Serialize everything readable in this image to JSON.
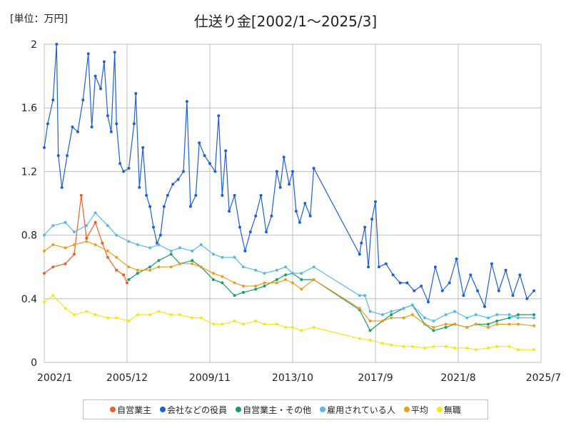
{
  "chart_data": {
    "type": "line",
    "title": "仕送り金[2002/1～2025/3]",
    "unit_label": "[単位：万円]",
    "x_tick_labels": [
      "2002/1",
      "2005/12",
      "2009/11",
      "2013/10",
      "2017/9",
      "2021/8",
      "2025/7"
    ],
    "x_range": [
      "2002-01",
      "2025-07"
    ],
    "y_tick_labels": [
      "0",
      "0.4",
      "0.8",
      "1.2",
      "1.6",
      "2"
    ],
    "ylim": [
      0,
      2
    ],
    "grid": true,
    "legend_position": "bottom",
    "series": [
      {
        "name": "自営業主",
        "color": "#e8612c",
        "points": [
          [
            "2002-01",
            0.56
          ],
          [
            "2002-06",
            0.6
          ],
          [
            "2003-01",
            0.62
          ],
          [
            "2003-06",
            0.68
          ],
          [
            "2003-10",
            1.05
          ],
          [
            "2004-01",
            0.78
          ],
          [
            "2004-06",
            0.88
          ],
          [
            "2004-10",
            0.75
          ],
          [
            "2005-01",
            0.66
          ],
          [
            "2005-06",
            0.58
          ],
          [
            "2005-10",
            0.55
          ],
          [
            "2005-12",
            0.5
          ]
        ]
      },
      {
        "name": "会社などの役員",
        "color": "#1f5fd1",
        "points": [
          [
            "2002-01",
            1.35
          ],
          [
            "2002-03",
            1.5
          ],
          [
            "2002-06",
            1.65
          ],
          [
            "2002-08",
            2.0
          ],
          [
            "2002-09",
            1.3
          ],
          [
            "2002-11",
            1.1
          ],
          [
            "2003-02",
            1.3
          ],
          [
            "2003-05",
            1.48
          ],
          [
            "2003-08",
            1.45
          ],
          [
            "2003-11",
            1.65
          ],
          [
            "2004-02",
            1.94
          ],
          [
            "2004-04",
            1.48
          ],
          [
            "2004-06",
            1.8
          ],
          [
            "2004-09",
            1.72
          ],
          [
            "2004-11",
            1.89
          ],
          [
            "2005-01",
            1.55
          ],
          [
            "2005-03",
            1.45
          ],
          [
            "2005-05",
            1.95
          ],
          [
            "2005-06",
            1.5
          ],
          [
            "2005-08",
            1.25
          ],
          [
            "2005-10",
            1.2
          ],
          [
            "2006-01",
            1.22
          ],
          [
            "2006-04",
            1.5
          ],
          [
            "2006-05",
            1.69
          ],
          [
            "2006-07",
            1.1
          ],
          [
            "2006-09",
            1.35
          ],
          [
            "2006-11",
            1.05
          ],
          [
            "2007-01",
            0.98
          ],
          [
            "2007-03",
            0.85
          ],
          [
            "2007-05",
            0.75
          ],
          [
            "2007-07",
            0.8
          ],
          [
            "2007-09",
            0.98
          ],
          [
            "2007-11",
            1.05
          ],
          [
            "2008-02",
            1.12
          ],
          [
            "2008-05",
            1.15
          ],
          [
            "2008-08",
            1.2
          ],
          [
            "2008-10",
            1.64
          ],
          [
            "2008-12",
            0.98
          ],
          [
            "2009-03",
            1.05
          ],
          [
            "2009-05",
            1.38
          ],
          [
            "2009-08",
            1.3
          ],
          [
            "2009-11",
            1.25
          ],
          [
            "2010-02",
            1.2
          ],
          [
            "2010-04",
            1.55
          ],
          [
            "2010-06",
            1.05
          ],
          [
            "2010-08",
            1.33
          ],
          [
            "2010-10",
            0.95
          ],
          [
            "2011-01",
            1.05
          ],
          [
            "2011-04",
            0.85
          ],
          [
            "2011-07",
            0.7
          ],
          [
            "2011-10",
            0.82
          ],
          [
            "2012-01",
            0.92
          ],
          [
            "2012-04",
            1.05
          ],
          [
            "2012-07",
            0.82
          ],
          [
            "2012-10",
            0.92
          ],
          [
            "2013-01",
            1.2
          ],
          [
            "2013-03",
            1.1
          ],
          [
            "2013-05",
            1.29
          ],
          [
            "2013-08",
            1.12
          ],
          [
            "2013-10",
            1.2
          ],
          [
            "2013-12",
            0.95
          ],
          [
            "2014-02",
            0.88
          ],
          [
            "2014-05",
            1.0
          ],
          [
            "2014-08",
            0.92
          ],
          [
            "2014-10",
            1.22
          ],
          [
            "2016-12",
            0.68
          ],
          [
            "2017-01",
            0.75
          ],
          [
            "2017-03",
            0.85
          ],
          [
            "2017-05",
            0.6
          ],
          [
            "2017-07",
            0.9
          ],
          [
            "2017-09",
            1.01
          ],
          [
            "2017-11",
            0.6
          ],
          [
            "2018-03",
            0.62
          ],
          [
            "2018-07",
            0.55
          ],
          [
            "2018-11",
            0.5
          ],
          [
            "2019-03",
            0.5
          ],
          [
            "2019-07",
            0.45
          ],
          [
            "2019-11",
            0.48
          ],
          [
            "2020-03",
            0.38
          ],
          [
            "2020-07",
            0.6
          ],
          [
            "2020-11",
            0.45
          ],
          [
            "2021-03",
            0.5
          ],
          [
            "2021-07",
            0.65
          ],
          [
            "2021-11",
            0.42
          ],
          [
            "2022-03",
            0.55
          ],
          [
            "2022-07",
            0.45
          ],
          [
            "2022-11",
            0.35
          ],
          [
            "2023-03",
            0.62
          ],
          [
            "2023-07",
            0.45
          ],
          [
            "2023-11",
            0.58
          ],
          [
            "2024-03",
            0.42
          ],
          [
            "2024-07",
            0.55
          ],
          [
            "2024-11",
            0.4
          ],
          [
            "2025-03",
            0.45
          ]
        ]
      },
      {
        "name": "自営業主・その他",
        "color": "#1a9c6b",
        "points": [
          [
            "2006-01",
            0.52
          ],
          [
            "2006-06",
            0.56
          ],
          [
            "2007-01",
            0.6
          ],
          [
            "2007-06",
            0.64
          ],
          [
            "2008-01",
            0.68
          ],
          [
            "2008-06",
            0.62
          ],
          [
            "2009-01",
            0.64
          ],
          [
            "2009-06",
            0.6
          ],
          [
            "2010-01",
            0.52
          ],
          [
            "2010-06",
            0.5
          ],
          [
            "2011-01",
            0.42
          ],
          [
            "2011-06",
            0.44
          ],
          [
            "2012-01",
            0.46
          ],
          [
            "2012-06",
            0.48
          ],
          [
            "2013-01",
            0.52
          ],
          [
            "2013-06",
            0.55
          ],
          [
            "2013-10",
            0.56
          ],
          [
            "2014-03",
            0.52
          ],
          [
            "2014-10",
            0.52
          ],
          [
            "2016-12",
            0.33
          ],
          [
            "2017-06",
            0.2
          ],
          [
            "2018-01",
            0.26
          ],
          [
            "2018-06",
            0.3
          ],
          [
            "2019-01",
            0.34
          ],
          [
            "2019-06",
            0.36
          ],
          [
            "2020-01",
            0.24
          ],
          [
            "2020-06",
            0.2
          ],
          [
            "2021-01",
            0.22
          ],
          [
            "2021-06",
            0.24
          ],
          [
            "2022-01",
            0.22
          ],
          [
            "2022-06",
            0.24
          ],
          [
            "2023-01",
            0.24
          ],
          [
            "2023-06",
            0.26
          ],
          [
            "2024-01",
            0.28
          ],
          [
            "2024-06",
            0.3
          ],
          [
            "2025-03",
            0.3
          ]
        ]
      },
      {
        "name": "雇用されている人",
        "color": "#5ab8e6",
        "points": [
          [
            "2002-01",
            0.8
          ],
          [
            "2002-06",
            0.86
          ],
          [
            "2003-01",
            0.88
          ],
          [
            "2003-06",
            0.82
          ],
          [
            "2004-01",
            0.86
          ],
          [
            "2004-06",
            0.94
          ],
          [
            "2005-01",
            0.86
          ],
          [
            "2005-06",
            0.8
          ],
          [
            "2006-01",
            0.76
          ],
          [
            "2006-06",
            0.74
          ],
          [
            "2007-01",
            0.72
          ],
          [
            "2007-06",
            0.74
          ],
          [
            "2008-01",
            0.7
          ],
          [
            "2008-06",
            0.72
          ],
          [
            "2009-01",
            0.7
          ],
          [
            "2009-06",
            0.74
          ],
          [
            "2010-01",
            0.68
          ],
          [
            "2010-06",
            0.66
          ],
          [
            "2011-01",
            0.66
          ],
          [
            "2011-06",
            0.6
          ],
          [
            "2012-01",
            0.58
          ],
          [
            "2012-06",
            0.56
          ],
          [
            "2013-01",
            0.58
          ],
          [
            "2013-06",
            0.6
          ],
          [
            "2013-10",
            0.56
          ],
          [
            "2014-03",
            0.56
          ],
          [
            "2014-10",
            0.6
          ],
          [
            "2016-12",
            0.42
          ],
          [
            "2017-03",
            0.42
          ],
          [
            "2017-06",
            0.32
          ],
          [
            "2018-01",
            0.3
          ],
          [
            "2018-06",
            0.32
          ],
          [
            "2019-01",
            0.34
          ],
          [
            "2019-06",
            0.36
          ],
          [
            "2020-01",
            0.28
          ],
          [
            "2020-06",
            0.26
          ],
          [
            "2021-01",
            0.3
          ],
          [
            "2021-06",
            0.32
          ],
          [
            "2022-01",
            0.28
          ],
          [
            "2022-06",
            0.3
          ],
          [
            "2023-01",
            0.28
          ],
          [
            "2023-06",
            0.3
          ],
          [
            "2024-01",
            0.3
          ],
          [
            "2024-06",
            0.28
          ],
          [
            "2025-03",
            0.28
          ]
        ]
      },
      {
        "name": "平均",
        "color": "#e8a020",
        "points": [
          [
            "2002-01",
            0.7
          ],
          [
            "2002-06",
            0.74
          ],
          [
            "2003-01",
            0.72
          ],
          [
            "2003-06",
            0.74
          ],
          [
            "2004-01",
            0.76
          ],
          [
            "2004-06",
            0.74
          ],
          [
            "2005-01",
            0.7
          ],
          [
            "2005-06",
            0.66
          ],
          [
            "2006-01",
            0.6
          ],
          [
            "2006-06",
            0.58
          ],
          [
            "2007-01",
            0.58
          ],
          [
            "2007-06",
            0.6
          ],
          [
            "2008-01",
            0.6
          ],
          [
            "2008-06",
            0.62
          ],
          [
            "2009-01",
            0.62
          ],
          [
            "2009-06",
            0.6
          ],
          [
            "2010-01",
            0.56
          ],
          [
            "2010-06",
            0.54
          ],
          [
            "2011-01",
            0.5
          ],
          [
            "2011-06",
            0.48
          ],
          [
            "2012-01",
            0.48
          ],
          [
            "2012-06",
            0.5
          ],
          [
            "2013-01",
            0.5
          ],
          [
            "2013-06",
            0.52
          ],
          [
            "2013-10",
            0.5
          ],
          [
            "2014-03",
            0.46
          ],
          [
            "2014-10",
            0.52
          ],
          [
            "2016-12",
            0.34
          ],
          [
            "2017-06",
            0.26
          ],
          [
            "2018-01",
            0.26
          ],
          [
            "2018-06",
            0.28
          ],
          [
            "2019-01",
            0.28
          ],
          [
            "2019-06",
            0.3
          ],
          [
            "2020-01",
            0.24
          ],
          [
            "2020-06",
            0.22
          ],
          [
            "2021-01",
            0.24
          ],
          [
            "2021-06",
            0.24
          ],
          [
            "2022-01",
            0.22
          ],
          [
            "2022-06",
            0.24
          ],
          [
            "2023-01",
            0.22
          ],
          [
            "2023-06",
            0.24
          ],
          [
            "2024-01",
            0.24
          ],
          [
            "2024-06",
            0.24
          ],
          [
            "2025-03",
            0.23
          ]
        ]
      },
      {
        "name": "無職",
        "color": "#f5e71c",
        "points": [
          [
            "2002-01",
            0.38
          ],
          [
            "2002-06",
            0.42
          ],
          [
            "2003-01",
            0.34
          ],
          [
            "2003-06",
            0.3
          ],
          [
            "2004-01",
            0.32
          ],
          [
            "2004-06",
            0.3
          ],
          [
            "2005-01",
            0.28
          ],
          [
            "2005-06",
            0.28
          ],
          [
            "2006-01",
            0.26
          ],
          [
            "2006-06",
            0.3
          ],
          [
            "2007-01",
            0.3
          ],
          [
            "2007-06",
            0.32
          ],
          [
            "2008-01",
            0.3
          ],
          [
            "2008-06",
            0.3
          ],
          [
            "2009-01",
            0.28
          ],
          [
            "2009-06",
            0.28
          ],
          [
            "2010-01",
            0.24
          ],
          [
            "2010-06",
            0.24
          ],
          [
            "2011-01",
            0.26
          ],
          [
            "2011-06",
            0.24
          ],
          [
            "2012-01",
            0.26
          ],
          [
            "2012-06",
            0.24
          ],
          [
            "2013-01",
            0.24
          ],
          [
            "2013-06",
            0.22
          ],
          [
            "2013-10",
            0.22
          ],
          [
            "2014-03",
            0.2
          ],
          [
            "2014-10",
            0.22
          ],
          [
            "2016-12",
            0.15
          ],
          [
            "2017-06",
            0.14
          ],
          [
            "2018-01",
            0.12
          ],
          [
            "2018-06",
            0.11
          ],
          [
            "2019-01",
            0.1
          ],
          [
            "2019-06",
            0.1
          ],
          [
            "2020-01",
            0.09
          ],
          [
            "2020-06",
            0.1
          ],
          [
            "2021-01",
            0.1
          ],
          [
            "2021-06",
            0.09
          ],
          [
            "2022-01",
            0.09
          ],
          [
            "2022-06",
            0.08
          ],
          [
            "2023-01",
            0.09
          ],
          [
            "2023-06",
            0.1
          ],
          [
            "2024-01",
            0.1
          ],
          [
            "2024-06",
            0.08
          ],
          [
            "2025-03",
            0.08
          ]
        ]
      }
    ]
  }
}
